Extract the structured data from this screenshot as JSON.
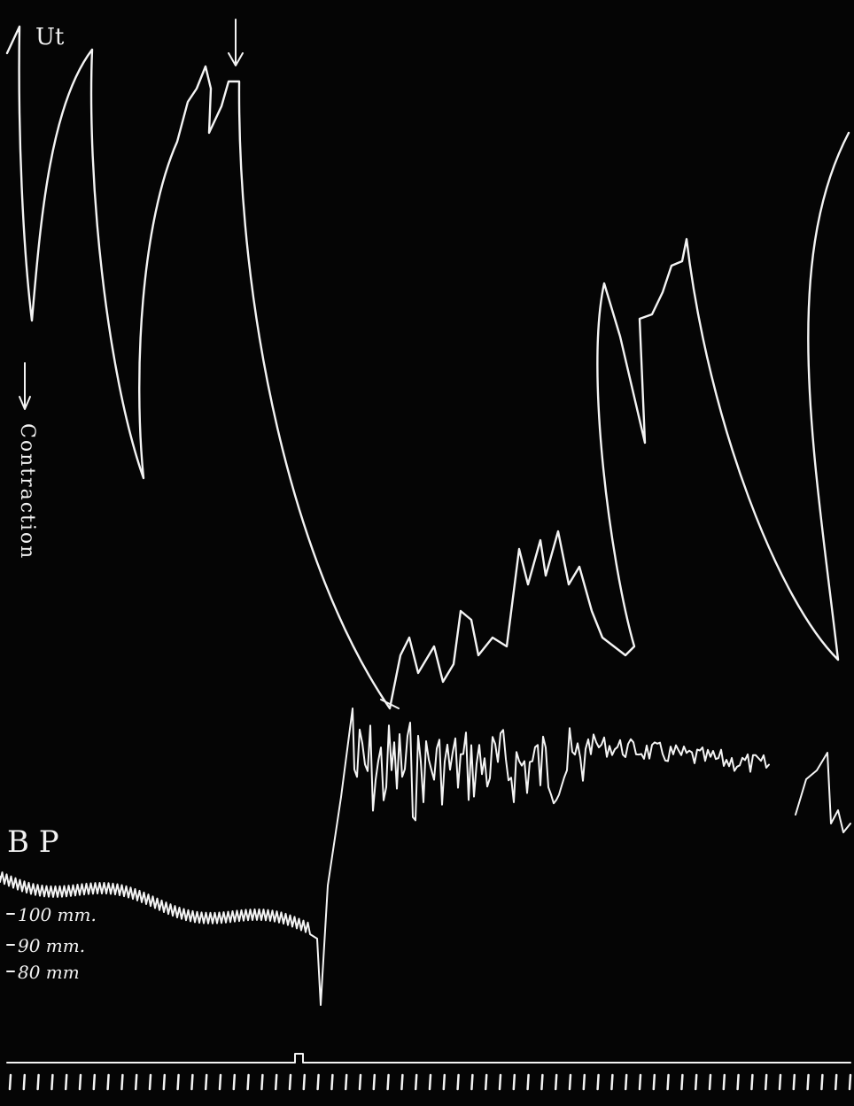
{
  "labels": {
    "uterus": "Ut",
    "contraction": "Contraction",
    "blood_pressure": "B P",
    "scale": [
      "100 mm.",
      "90 mm.",
      "80 mm"
    ]
  }
}
